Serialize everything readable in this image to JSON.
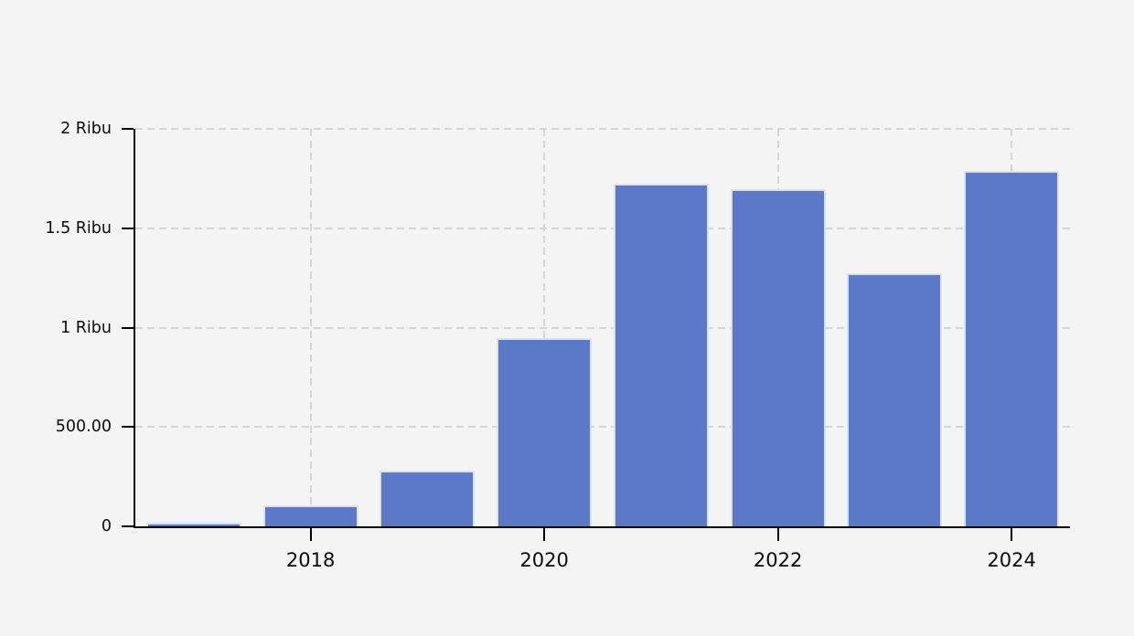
{
  "chart_data": {
    "type": "bar",
    "title": "",
    "xlabel": "",
    "ylabel": "",
    "categories": [
      "2017",
      "2018",
      "2019",
      "2020",
      "2021",
      "2022",
      "2023",
      "2024"
    ],
    "values": [
      20,
      105,
      280,
      945,
      1725,
      1695,
      1275,
      1790
    ],
    "series_name": "value",
    "ylim": [
      0,
      2000
    ],
    "y_ticks": [
      {
        "value": 0,
        "label": "0"
      },
      {
        "value": 500,
        "label": "500.00"
      },
      {
        "value": 1000,
        "label": "1 Ribu"
      },
      {
        "value": 1500,
        "label": "1.5 Ribu"
      },
      {
        "value": 2000,
        "label": "2 Ribu"
      }
    ],
    "x_ticks": [
      {
        "category": "2018",
        "label": "2018"
      },
      {
        "category": "2020",
        "label": "2020"
      },
      {
        "category": "2022",
        "label": "2022"
      },
      {
        "category": "2024",
        "label": "2024"
      }
    ],
    "grid": "dashed",
    "legend_position": "none",
    "colors": {
      "bar_fill": "#5b79c8",
      "bar_border": "#dce1f2",
      "gridline": "#d5d5d7",
      "axis": "#000000",
      "text": "#0b0b0b",
      "background": "#f4f4f5"
    }
  }
}
